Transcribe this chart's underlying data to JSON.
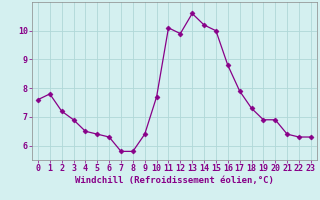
{
  "x": [
    0,
    1,
    2,
    3,
    4,
    5,
    6,
    7,
    8,
    9,
    10,
    11,
    12,
    13,
    14,
    15,
    16,
    17,
    18,
    19,
    20,
    21,
    22,
    23
  ],
  "y": [
    7.6,
    7.8,
    7.2,
    6.9,
    6.5,
    6.4,
    6.3,
    5.8,
    5.8,
    6.4,
    7.7,
    10.1,
    9.9,
    10.6,
    10.2,
    10.0,
    8.8,
    7.9,
    7.3,
    6.9,
    6.9,
    6.4,
    6.3,
    6.3
  ],
  "line_color": "#880088",
  "marker": "D",
  "marker_size": 2.5,
  "bg_color": "#d4f0f0",
  "grid_color": "#b0d8d8",
  "xlabel": "Windchill (Refroidissement éolien,°C)",
  "xlabel_color": "#880088",
  "tick_color": "#880088",
  "ylim": [
    5.5,
    11.0
  ],
  "xlim": [
    -0.5,
    23.5
  ],
  "yticks": [
    6,
    7,
    8,
    9,
    10
  ],
  "xticks": [
    0,
    1,
    2,
    3,
    4,
    5,
    6,
    7,
    8,
    9,
    10,
    11,
    12,
    13,
    14,
    15,
    16,
    17,
    18,
    19,
    20,
    21,
    22,
    23
  ],
  "spine_color": "#888888",
  "font_size_label": 6.5,
  "font_size_tick": 6.0,
  "line_width": 0.9
}
